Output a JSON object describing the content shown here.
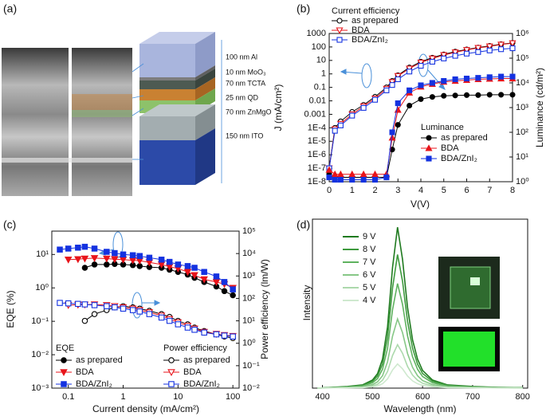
{
  "figure_a": {
    "panel_label": "(a)",
    "layers": [
      "100 nm Al",
      "10 nm MoO₃",
      "70 nm TCTA",
      "25 nm QD",
      "70 nm ZnMgO",
      "150 nm ITO"
    ]
  },
  "chart_data": [
    {
      "type": "line",
      "panel_label": "(b)",
      "x_label": "V(V)",
      "y_label": "J (mA/cm²)",
      "y2_label": "Luminance (cd/m²)",
      "legend_titles": [
        "Current efficiency",
        "Luminance"
      ],
      "x": [
        0,
        0.25,
        0.5,
        1,
        1.5,
        2,
        2.5,
        2.75,
        3,
        3.5,
        4,
        4.5,
        5,
        5.5,
        6,
        6.5,
        7,
        7.5,
        8
      ],
      "xlim": [
        0,
        8
      ],
      "xticks": [
        0,
        1,
        2,
        3,
        4,
        5,
        6,
        7,
        8
      ],
      "ylim": [
        1e-08,
        1000
      ],
      "log_y": true,
      "yticks": [
        {
          "value": 1e-08,
          "label": "1E-8"
        },
        {
          "value": 1e-07,
          "label": "1E-7"
        },
        {
          "value": 1e-06,
          "label": "1E-6"
        },
        {
          "value": 1e-05,
          "label": "1E-5"
        },
        {
          "value": 0.0001,
          "label": "1E-4"
        },
        0.001,
        0.01,
        0.1,
        1,
        10,
        100,
        1000
      ],
      "y2lim": [
        1,
        1000000
      ],
      "log_y2": true,
      "y2ticks": [
        {
          "value": 1,
          "label": "10⁰"
        },
        {
          "value": 10,
          "label": "10¹"
        },
        {
          "value": 100,
          "label": "10²"
        },
        {
          "value": 1000,
          "label": "10³"
        },
        {
          "value": 10000,
          "label": "10⁴"
        },
        {
          "value": 100000,
          "label": "10⁵"
        },
        {
          "value": 1000000,
          "label": "10⁶"
        }
      ],
      "series": [
        {
          "name": "as prepared",
          "color": "#000000",
          "marker": "circle",
          "filled": false,
          "axis": "y",
          "values": [
            1e-07,
            0.0001,
            0.0003,
            0.0015,
            0.005,
            0.02,
            0.1,
            0.3,
            0.8,
            3,
            8,
            16,
            28,
            45,
            65,
            90,
            120,
            160,
            200
          ]
        },
        {
          "name": "BDA",
          "color": "#e8141b",
          "marker": "triangle-down",
          "filled": false,
          "axis": "y",
          "values": [
            1e-07,
            8e-05,
            0.0002,
            0.001,
            0.004,
            0.015,
            0.08,
            0.25,
            0.7,
            2.5,
            7,
            14,
            25,
            40,
            60,
            85,
            110,
            150,
            190
          ]
        },
        {
          "name": "BDA/ZnI₂",
          "color": "#1432e0",
          "marker": "square",
          "filled": false,
          "axis": "y",
          "values": [
            1e-07,
            6e-05,
            0.00015,
            0.0008,
            0.003,
            0.012,
            0.06,
            0.15,
            0.4,
            1.5,
            4,
            8,
            14,
            22,
            32,
            42,
            55,
            68,
            80
          ]
        },
        {
          "name": "as prepared",
          "color": "#000000",
          "marker": "circle",
          "filled": true,
          "axis": "y2",
          "values": [
            2,
            1.5,
            1.5,
            1.5,
            1.5,
            1.5,
            1.5,
            20,
            200,
            1200,
            2200,
            2700,
            3000,
            3100,
            3200,
            3200,
            3300,
            3300,
            3300
          ]
        },
        {
          "name": "BDA",
          "color": "#e8141b",
          "marker": "triangle",
          "filled": true,
          "axis": "y2",
          "values": [
            3,
            2,
            2,
            2,
            2,
            2,
            2,
            60,
            800,
            4000,
            7000,
            9000,
            11000,
            12000,
            13000,
            14000,
            14500,
            15000,
            15000
          ]
        },
        {
          "name": "BDA/ZnI₂",
          "color": "#1432e0",
          "marker": "square",
          "filled": true,
          "axis": "y2",
          "values": [
            1.5,
            1.2,
            1.2,
            1.2,
            1.2,
            1.2,
            1.5,
            100,
            1500,
            5000,
            8000,
            10000,
            12000,
            14000,
            15000,
            16000,
            17000,
            18000,
            18000
          ]
        }
      ]
    },
    {
      "type": "line",
      "panel_label": "(c)",
      "x_label": "Current density (mA/cm²)",
      "y_label": "EQE (%)",
      "y2_label": "Power efficiency (lm/W)",
      "legend_titles": [
        "EQE",
        "Power efficiency"
      ],
      "x": [
        0.07,
        0.1,
        0.15,
        0.2,
        0.3,
        0.5,
        0.7,
        1,
        1.5,
        2,
        3,
        5,
        7,
        10,
        15,
        20,
        30,
        50,
        70,
        100
      ],
      "xlim": [
        0.05,
        130
      ],
      "log_x": true,
      "xticks": [
        0.1,
        1,
        10,
        100
      ],
      "ylim": [
        0.001,
        50
      ],
      "log_y": true,
      "yticks": [
        {
          "value": 0.001,
          "label": "10⁻³"
        },
        {
          "value": 0.01,
          "label": "10⁻²"
        },
        {
          "value": 0.1,
          "label": "10⁻¹"
        },
        {
          "value": 1,
          "label": "10⁰"
        },
        {
          "value": 10,
          "label": "10¹"
        }
      ],
      "y2lim": [
        0.01,
        100000
      ],
      "log_y2": true,
      "y2ticks": [
        {
          "value": 0.01,
          "label": "10⁻²"
        },
        {
          "value": 0.1,
          "label": "10⁻¹"
        },
        {
          "value": 1,
          "label": "10⁰"
        },
        {
          "value": 10,
          "label": "10¹"
        },
        {
          "value": 100,
          "label": "10²"
        },
        {
          "value": 1000,
          "label": "10³"
        },
        {
          "value": 10000,
          "label": "10⁴"
        },
        {
          "value": 100000,
          "label": "10⁵"
        }
      ],
      "series": [
        {
          "name": "as prepared",
          "color": "#000000",
          "marker": "circle",
          "filled": true,
          "axis": "y",
          "values": [
            null,
            null,
            null,
            4,
            5,
            5,
            5.2,
            5,
            4.8,
            4.5,
            4.2,
            4,
            3.5,
            3,
            2.5,
            2,
            1.5,
            1.1,
            0.8,
            0.6
          ]
        },
        {
          "name": "BDA",
          "color": "#e8141b",
          "marker": "triangle-down",
          "filled": true,
          "axis": "y",
          "values": [
            null,
            7,
            7.2,
            7.5,
            7.8,
            7.5,
            7.2,
            7,
            6.7,
            6.5,
            5.8,
            5,
            4.3,
            3.8,
            3,
            2.4,
            1.8,
            1.5,
            1.3,
            1.0
          ]
        },
        {
          "name": "BDA/ZnI₂",
          "color": "#1432e0",
          "marker": "square",
          "filled": true,
          "axis": "y",
          "values": [
            14,
            15,
            16,
            17,
            15,
            12,
            11,
            10,
            9.5,
            9,
            8,
            7,
            6,
            5,
            4.5,
            4,
            3,
            2.2,
            1.5,
            0.9
          ]
        },
        {
          "name": "as prepared",
          "color": "#000000",
          "marker": "circle",
          "filled": false,
          "axis": "y2",
          "values": [
            null,
            null,
            null,
            10,
            20,
            30,
            40,
            45,
            40,
            35,
            28,
            20,
            15,
            10,
            7,
            5,
            3.5,
            2.5,
            2.0,
            1.7
          ]
        },
        {
          "name": "BDA",
          "color": "#e8141b",
          "marker": "triangle-down",
          "filled": false,
          "axis": "y2",
          "values": [
            null,
            50,
            52,
            53,
            54,
            50,
            45,
            40,
            35,
            30,
            24,
            17,
            12,
            8.5,
            6,
            4.5,
            3.2,
            2.6,
            2.3,
            2.1
          ]
        },
        {
          "name": "BDA/ZnI₂",
          "color": "#1432e0",
          "marker": "square",
          "filled": false,
          "axis": "y2",
          "values": [
            63,
            60,
            57,
            54,
            50,
            45,
            40,
            35,
            30,
            26,
            20,
            14,
            10,
            7,
            5,
            4,
            3,
            2.5,
            2.2,
            2.0
          ]
        }
      ]
    },
    {
      "type": "line",
      "panel_label": "(d)",
      "x_label": "Wavelength (nm)",
      "y_label": "Intensity",
      "x": [
        390,
        450,
        480,
        500,
        510,
        520,
        530,
        540,
        550,
        560,
        570,
        580,
        590,
        600,
        620,
        650,
        700,
        750,
        800
      ],
      "xlim": [
        380,
        810
      ],
      "xticks": [
        400,
        500,
        600,
        700,
        800
      ],
      "ylim": [
        0,
        105
      ],
      "series": [
        {
          "name": "9 V",
          "color": "#1f7a1f",
          "marker": "none",
          "values": [
            0,
            1,
            2,
            5,
            9,
            18,
            38,
            75,
            100,
            80,
            50,
            30,
            18,
            11,
            5,
            2,
            1,
            0.5,
            0.3
          ]
        },
        {
          "name": "8 V",
          "color": "#3d9a3d",
          "marker": "none",
          "values": [
            0,
            0.8,
            1.7,
            4.2,
            7.5,
            14.9,
            31.5,
            62.3,
            83,
            66.4,
            41.5,
            24.9,
            14.9,
            9.1,
            4.2,
            1.7,
            0.8,
            0.4,
            0.2
          ]
        },
        {
          "name": "7 V",
          "color": "#5fb25f",
          "marker": "none",
          "values": [
            0,
            0.7,
            1.3,
            3.3,
            5.9,
            11.7,
            24.7,
            48.8,
            65,
            52,
            32.5,
            19.5,
            11.7,
            7.2,
            3.3,
            1.3,
            0.7,
            0.3,
            0.2
          ]
        },
        {
          "name": "6 V",
          "color": "#86c786",
          "marker": "none",
          "values": [
            0,
            0.4,
            0.9,
            2.2,
            3.9,
            7.7,
            16.3,
            32.3,
            43,
            34.4,
            21.5,
            12.9,
            7.7,
            4.7,
            2.2,
            0.9,
            0.4,
            0.2,
            0.1
          ]
        },
        {
          "name": "5 V",
          "color": "#acd9ac",
          "marker": "none",
          "values": [
            0,
            0.3,
            0.5,
            1.4,
            2.4,
            4.9,
            10.3,
            20.3,
            27,
            21.6,
            13.5,
            8.1,
            4.9,
            3,
            1.4,
            0.5,
            0.3,
            0.1,
            0.1
          ]
        },
        {
          "name": "4 V",
          "color": "#cfe9cf",
          "marker": "none",
          "values": [
            0,
            0.2,
            0.3,
            0.8,
            1.4,
            2.7,
            5.7,
            11.3,
            15,
            12,
            7.5,
            4.5,
            2.7,
            1.7,
            0.8,
            0.3,
            0.2,
            0.1,
            0
          ]
        }
      ]
    }
  ]
}
